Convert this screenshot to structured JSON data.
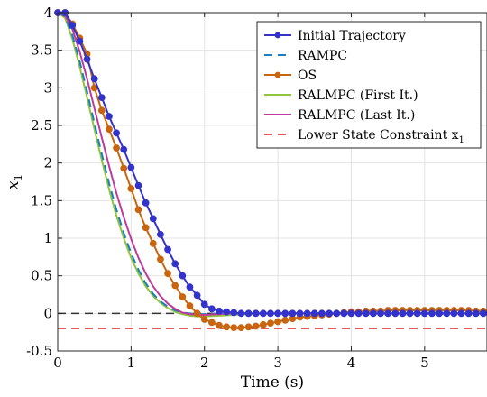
{
  "chart_data": {
    "type": "line",
    "xlabel": "Time (s)",
    "ylabel": "x",
    "ylabel_subscript": "1",
    "xlim": [
      0,
      5.85
    ],
    "ylim": [
      -0.5,
      4
    ],
    "xticks": [
      0,
      1,
      2,
      3,
      4,
      5
    ],
    "yticks": [
      -0.5,
      0,
      0.5,
      1,
      1.5,
      2,
      2.5,
      3,
      3.5,
      4
    ],
    "grid": true,
    "legend_position": "top-right",
    "reference_lines": [
      {
        "name": "zero-line",
        "y": 0,
        "color": "#333333",
        "style": "dashed"
      }
    ],
    "series": [
      {
        "name": "Initial Trajectory",
        "color": "#3333cc",
        "style": "solid-marker",
        "x": [
          0,
          0.1,
          0.2,
          0.3,
          0.4,
          0.5,
          0.6,
          0.7,
          0.8,
          0.9,
          1.0,
          1.1,
          1.2,
          1.3,
          1.4,
          1.5,
          1.6,
          1.7,
          1.8,
          1.9,
          2.0,
          2.1,
          2.2,
          2.3,
          2.4,
          2.5,
          2.6,
          2.7,
          2.8,
          2.9,
          3.0,
          3.1,
          3.2,
          3.3,
          3.4,
          3.5,
          3.6,
          3.7,
          3.8,
          3.9,
          4.0,
          4.1,
          4.2,
          4.3,
          4.4,
          4.5,
          4.6,
          4.7,
          4.8,
          4.9,
          5.0,
          5.1,
          5.2,
          5.3,
          5.4,
          5.5,
          5.6,
          5.7,
          5.8
        ],
        "y": [
          4.0,
          4.0,
          3.83,
          3.62,
          3.38,
          3.12,
          2.87,
          2.62,
          2.4,
          2.18,
          1.94,
          1.7,
          1.47,
          1.26,
          1.05,
          0.85,
          0.66,
          0.5,
          0.35,
          0.24,
          0.12,
          0.06,
          0.03,
          0.02,
          0.01,
          0.0,
          0.0,
          0.0,
          0.0,
          0.0,
          0.0,
          0.0,
          0.0,
          0.0,
          0.0,
          0.0,
          0.0,
          0.0,
          0.0,
          0.0,
          0.0,
          0.0,
          0.0,
          0.0,
          0.0,
          0.0,
          0.0,
          0.0,
          0.0,
          0.0,
          0.0,
          0.0,
          0.0,
          0.0,
          0.0,
          0.0,
          0.0,
          0.0,
          0.0
        ]
      },
      {
        "name": "RAMPC",
        "color": "#1a7fc1",
        "style": "dashed",
        "x": [
          0,
          0.1,
          0.2,
          0.3,
          0.4,
          0.5,
          0.6,
          0.7,
          0.8,
          0.9,
          1.0,
          1.1,
          1.2,
          1.3,
          1.4,
          1.5,
          1.6,
          1.7,
          1.8,
          1.9,
          2.0,
          2.2,
          2.4,
          2.6,
          2.8,
          3.0,
          3.5,
          4.0,
          5.0,
          5.85
        ],
        "y": [
          4.0,
          3.95,
          3.7,
          3.35,
          2.95,
          2.53,
          2.12,
          1.73,
          1.38,
          1.07,
          0.8,
          0.58,
          0.4,
          0.26,
          0.16,
          0.09,
          0.04,
          0.01,
          0.0,
          -0.01,
          -0.01,
          0.0,
          0.0,
          0.0,
          0.0,
          0.0,
          0.0,
          0.0,
          0.0,
          0.0
        ]
      },
      {
        "name": "OS",
        "color": "#c9650e",
        "style": "solid-marker",
        "x": [
          0,
          0.1,
          0.2,
          0.3,
          0.4,
          0.5,
          0.6,
          0.7,
          0.8,
          0.9,
          1.0,
          1.1,
          1.2,
          1.3,
          1.4,
          1.5,
          1.6,
          1.7,
          1.8,
          1.9,
          2.0,
          2.1,
          2.2,
          2.3,
          2.4,
          2.5,
          2.6,
          2.7,
          2.8,
          2.9,
          3.0,
          3.1,
          3.2,
          3.3,
          3.4,
          3.5,
          3.6,
          3.7,
          3.8,
          3.9,
          4.0,
          4.1,
          4.2,
          4.3,
          4.4,
          4.5,
          4.6,
          4.7,
          4.8,
          4.9,
          5.0,
          5.1,
          5.2,
          5.3,
          5.4,
          5.5,
          5.6,
          5.7,
          5.8
        ],
        "y": [
          4.0,
          4.0,
          3.85,
          3.66,
          3.45,
          3.0,
          2.7,
          2.45,
          2.2,
          1.93,
          1.66,
          1.38,
          1.14,
          0.93,
          0.72,
          0.53,
          0.37,
          0.22,
          0.1,
          0.0,
          -0.08,
          -0.12,
          -0.16,
          -0.18,
          -0.19,
          -0.19,
          -0.18,
          -0.17,
          -0.15,
          -0.13,
          -0.11,
          -0.09,
          -0.07,
          -0.05,
          -0.04,
          -0.03,
          -0.02,
          -0.01,
          0.0,
          0.01,
          0.02,
          0.02,
          0.03,
          0.03,
          0.03,
          0.04,
          0.04,
          0.04,
          0.04,
          0.04,
          0.04,
          0.04,
          0.04,
          0.04,
          0.04,
          0.04,
          0.04,
          0.03,
          0.03
        ]
      },
      {
        "name": "RALMPC (First It.)",
        "color": "#8fc43c",
        "style": "solid",
        "x": [
          0,
          0.1,
          0.2,
          0.3,
          0.4,
          0.5,
          0.6,
          0.7,
          0.8,
          0.9,
          1.0,
          1.1,
          1.2,
          1.3,
          1.4,
          1.5,
          1.6,
          1.7,
          1.8,
          1.9,
          2.0,
          2.2,
          2.4,
          2.6,
          2.8,
          3.0,
          3.5,
          4.0,
          5.0,
          5.85
        ],
        "y": [
          4.0,
          3.93,
          3.65,
          3.28,
          2.87,
          2.45,
          2.04,
          1.65,
          1.3,
          1.0,
          0.74,
          0.53,
          0.36,
          0.23,
          0.14,
          0.07,
          0.02,
          -0.01,
          -0.03,
          -0.04,
          -0.04,
          -0.03,
          -0.02,
          -0.01,
          0.0,
          0.0,
          0.0,
          0.0,
          0.0,
          0.0
        ]
      },
      {
        "name": "RALMPC (Last It.)",
        "color": "#bf3a9b",
        "style": "solid",
        "x": [
          0,
          0.1,
          0.2,
          0.3,
          0.4,
          0.5,
          0.6,
          0.7,
          0.8,
          0.9,
          1.0,
          1.1,
          1.2,
          1.3,
          1.4,
          1.5,
          1.6,
          1.7,
          1.8,
          1.9,
          2.0,
          2.2,
          2.4,
          2.6,
          2.8,
          3.0,
          3.5,
          4.0,
          5.0,
          5.85
        ],
        "y": [
          4.0,
          3.96,
          3.78,
          3.48,
          3.12,
          2.73,
          2.34,
          1.96,
          1.6,
          1.28,
          0.99,
          0.74,
          0.53,
          0.36,
          0.23,
          0.13,
          0.06,
          0.01,
          -0.01,
          -0.02,
          -0.02,
          -0.01,
          0.0,
          0.0,
          0.0,
          0.0,
          0.0,
          0.0,
          0.0,
          0.0
        ]
      },
      {
        "name": "Lower State Constraint x",
        "name_subscript": "1",
        "color": "#e85a5a",
        "style": "dashed",
        "x": [
          0,
          5.85
        ],
        "y": [
          -0.2,
          -0.2
        ]
      }
    ]
  }
}
